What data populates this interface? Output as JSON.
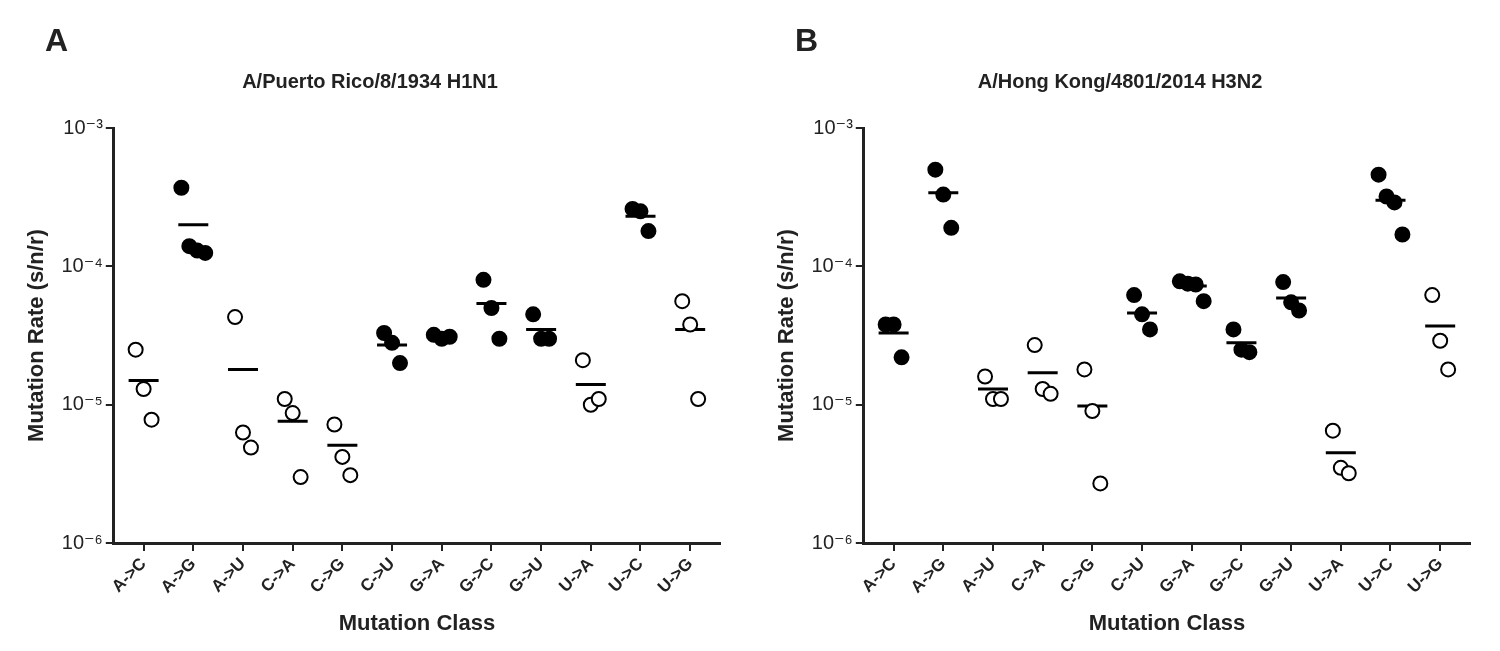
{
  "chart_data": [
    {
      "type": "scatter",
      "panel": "A",
      "title": "A/Puerto Rico/8/1934 H1N1",
      "x_label": "Mutation Class",
      "y_label": "Mutation Rate (s/n/r)",
      "log": "y",
      "grid": false,
      "ylim": [
        1e-06,
        0.001
      ],
      "yticks": [
        {
          "value": 1e-06,
          "label": "10⁻⁶"
        },
        {
          "value": 1e-05,
          "label": "10⁻⁵"
        },
        {
          "value": 0.0001,
          "label": "10⁻⁴"
        },
        {
          "value": 0.001,
          "label": "10⁻³"
        }
      ],
      "categories": [
        "A->C",
        "A->G",
        "A->U",
        "C->A",
        "C->G",
        "C->U",
        "G->A",
        "G->C",
        "G->U",
        "U->A",
        "U->C",
        "U->G"
      ],
      "series": [
        {
          "marker": "filled_circle",
          "color": "#000000",
          "values": [
            null,
            [
              0.00037,
              0.00014,
              0.00013,
              0.000125
            ],
            null,
            null,
            null,
            [
              3.3e-05,
              2.8e-05,
              2e-05
            ],
            [
              3.2e-05,
              3e-05,
              3.1e-05
            ],
            [
              8e-05,
              5e-05,
              3e-05
            ],
            [
              4.5e-05,
              3e-05,
              3e-05
            ],
            null,
            [
              0.00026,
              0.00025,
              0.00018
            ],
            null
          ]
        },
        {
          "marker": "open_circle",
          "color": "#000000",
          "values": [
            [
              2.5e-05,
              1.3e-05,
              7.8e-06
            ],
            null,
            [
              4.3e-05,
              6.3e-06,
              4.9e-06
            ],
            [
              1.1e-05,
              8.7e-06,
              3e-06
            ],
            [
              7.2e-06,
              4.2e-06,
              3.1e-06
            ],
            null,
            null,
            null,
            null,
            [
              2.1e-05,
              1e-05,
              1.1e-05
            ],
            null,
            [
              5.6e-05,
              3.8e-05,
              1.1e-05
            ]
          ]
        }
      ],
      "means": [
        1.5e-05,
        0.0002,
        1.8e-05,
        7.6e-06,
        5.1e-06,
        2.7e-05,
        3.1e-05,
        5.4e-05,
        3.5e-05,
        1.4e-05,
        0.00023,
        3.5e-05
      ]
    },
    {
      "type": "scatter",
      "panel": "B",
      "title": "A/Hong Kong/4801/2014 H3N2",
      "x_label": "Mutation Class",
      "y_label": "Mutation Rate (s/n/r)",
      "log": "y",
      "grid": false,
      "ylim": [
        1e-06,
        0.001
      ],
      "yticks": [
        {
          "value": 1e-06,
          "label": "10⁻⁶"
        },
        {
          "value": 1e-05,
          "label": "10⁻⁵"
        },
        {
          "value": 0.0001,
          "label": "10⁻⁴"
        },
        {
          "value": 0.001,
          "label": "10⁻³"
        }
      ],
      "categories": [
        "A->C",
        "A->G",
        "A->U",
        "C->A",
        "C->G",
        "C->U",
        "G->A",
        "G->C",
        "G->U",
        "U->A",
        "U->C",
        "U->G"
      ],
      "series": [
        {
          "marker": "filled_circle",
          "color": "#000000",
          "values": [
            [
              3.8e-05,
              3.8e-05,
              2.2e-05
            ],
            [
              0.0005,
              0.00033,
              0.00019
            ],
            null,
            null,
            null,
            [
              6.2e-05,
              4.5e-05,
              3.5e-05
            ],
            [
              7.8e-05,
              7.5e-05,
              7.4e-05,
              5.6e-05
            ],
            [
              3.5e-05,
              2.5e-05,
              2.4e-05
            ],
            [
              7.7e-05,
              5.5e-05,
              4.8e-05
            ],
            null,
            [
              0.00046,
              0.00032,
              0.00029,
              0.00017
            ],
            null
          ]
        },
        {
          "marker": "open_circle",
          "color": "#000000",
          "values": [
            null,
            null,
            [
              1.6e-05,
              1.1e-05,
              1.1e-05
            ],
            [
              2.7e-05,
              1.3e-05,
              1.2e-05
            ],
            [
              1.8e-05,
              9e-06,
              2.7e-06
            ],
            null,
            null,
            null,
            null,
            [
              6.5e-06,
              3.5e-06,
              3.2e-06
            ],
            null,
            [
              6.2e-05,
              2.9e-05,
              1.8e-05
            ]
          ]
        }
      ],
      "means": [
        3.3e-05,
        0.00034,
        1.3e-05,
        1.7e-05,
        9.8e-06,
        4.6e-05,
        7.2e-05,
        2.8e-05,
        5.9e-05,
        4.5e-06,
        0.0003,
        3.7e-05
      ]
    }
  ]
}
